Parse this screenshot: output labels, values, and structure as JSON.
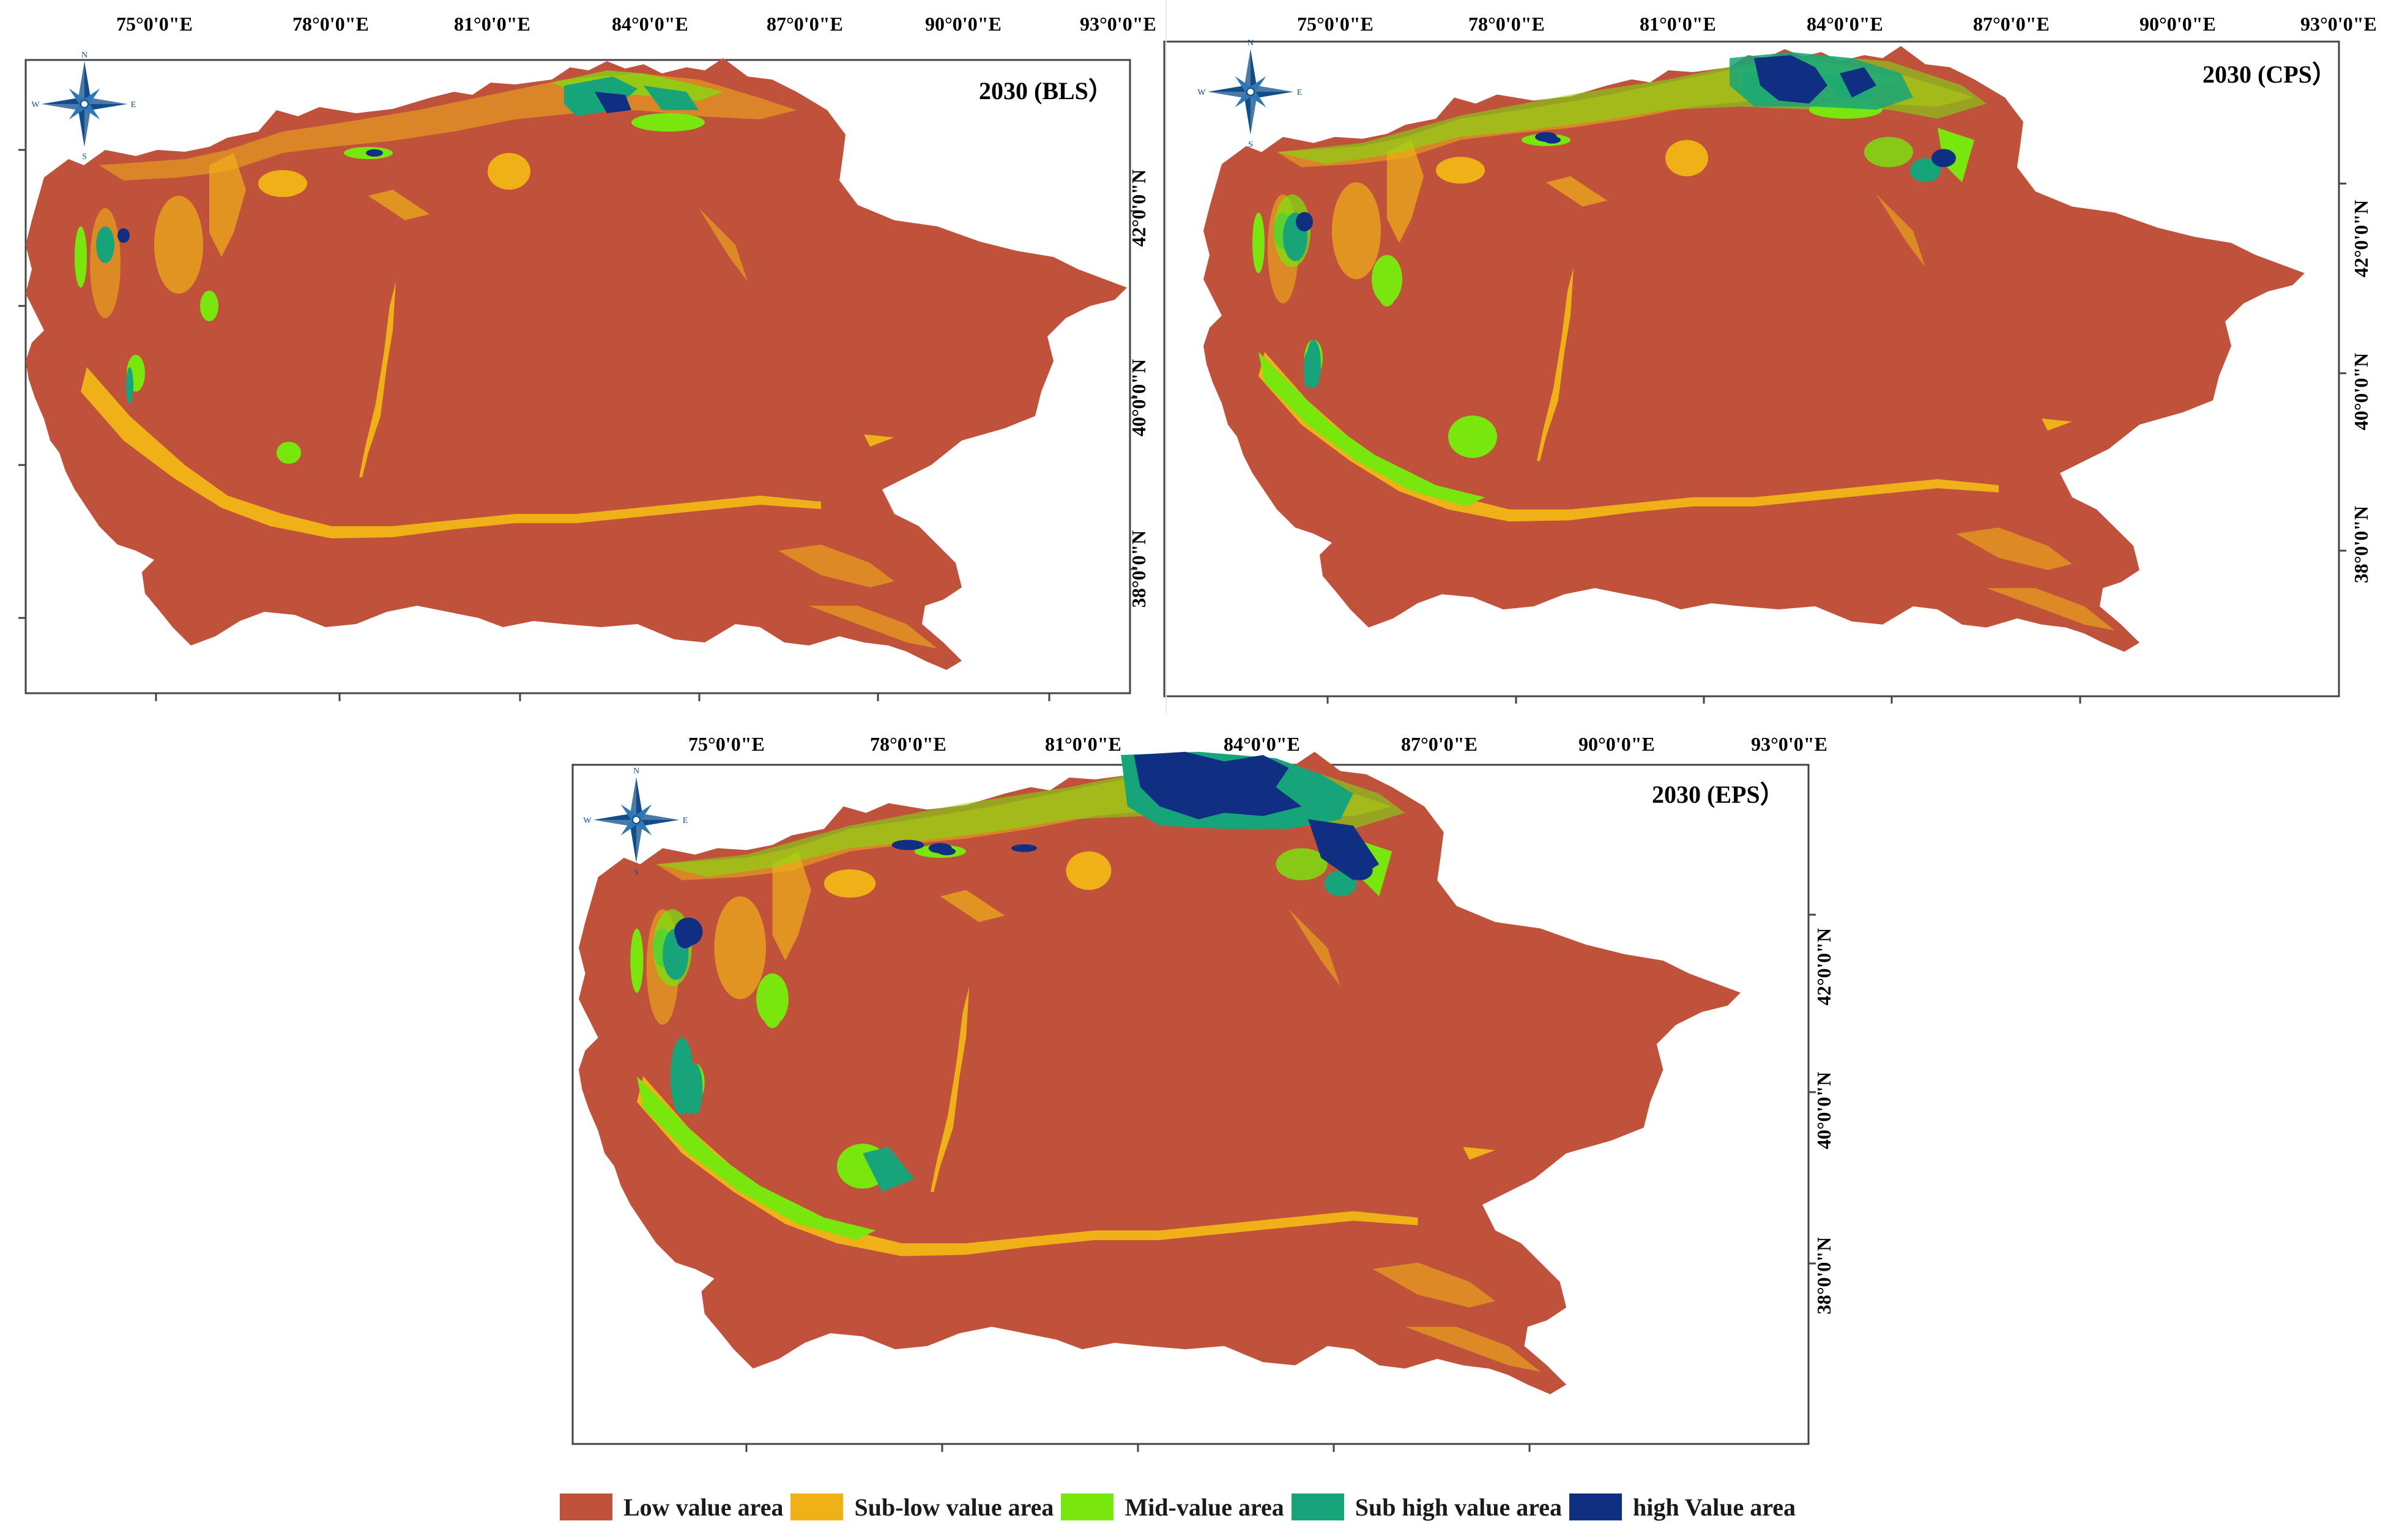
{
  "legend": {
    "items": [
      {
        "label": "Low value area",
        "color": "#c0523c"
      },
      {
        "label": "Sub-low value area",
        "color": "#efb117"
      },
      {
        "label": "Mid-value area",
        "color": "#79e60e"
      },
      {
        "label": "Sub high value area",
        "color": "#17a47a"
      },
      {
        "label": "high Value area",
        "color": "#0f2f83"
      }
    ]
  },
  "panels": [
    {
      "title": "2030 (BLS）",
      "lon_ticks": [
        "75°0'0\"E",
        "78°0'0\"E",
        "81°0'0\"E",
        "84°0'0\"E",
        "87°0'0\"E",
        "90°0'0\"E",
        "93°0'0\"E"
      ],
      "lat_ticks": [
        "42°0'0\"N",
        "40°0'0\"N",
        "38°0'0\"N"
      ],
      "severity": 1
    },
    {
      "title": "2030 (CPS）",
      "lon_ticks": [
        "75°0'0\"E",
        "78°0'0\"E",
        "81°0'0\"E",
        "84°0'0\"E",
        "87°0'0\"E",
        "90°0'0\"E",
        "93°0'0\"E"
      ],
      "lat_ticks": [
        "42°0'0\"N",
        "40°0'0\"N",
        "38°0'0\"N"
      ],
      "severity": 2
    },
    {
      "title": "2030 (EPS）",
      "lon_ticks": [
        "75°0'0\"E",
        "78°0'0\"E",
        "81°0'0\"E",
        "84°0'0\"E",
        "87°0'0\"E",
        "90°0'0\"E",
        "93°0'0\"E"
      ],
      "lat_ticks": [
        "42°0'0\"N",
        "40°0'0\"N",
        "38°0'0\"N"
      ],
      "severity": 3
    }
  ],
  "compass": {
    "n": "N",
    "s": "S",
    "e": "E",
    "w": "W"
  }
}
